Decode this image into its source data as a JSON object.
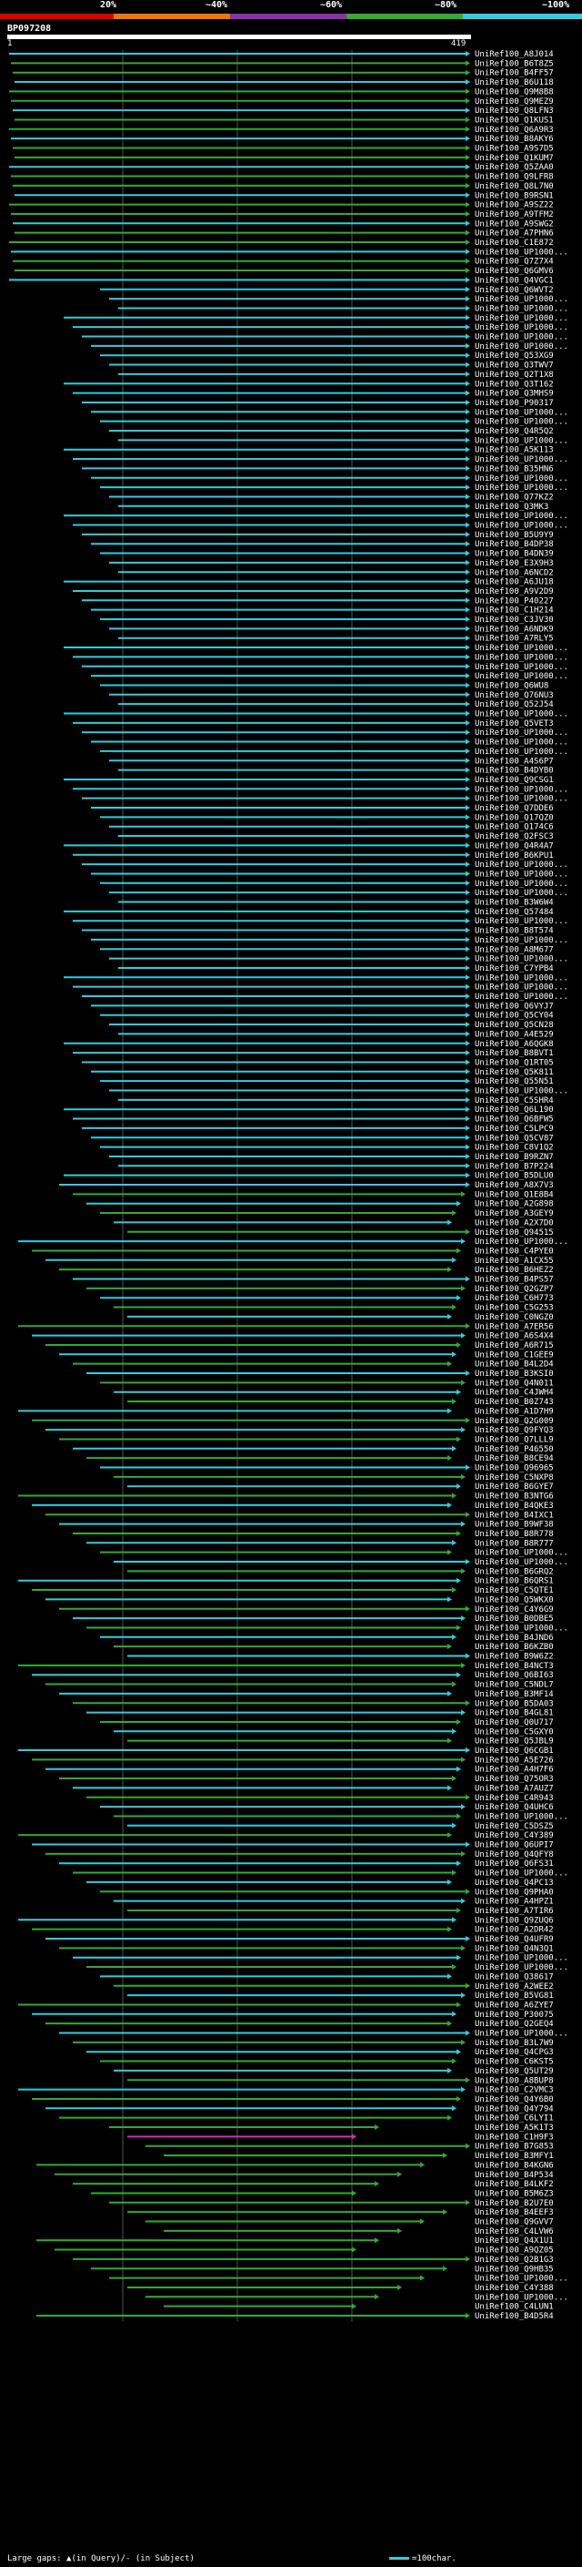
{
  "legend": {
    "segments": [
      {
        "color": "#dd0000"
      },
      {
        "color": "#ee7700"
      },
      {
        "color": "#8833aa"
      },
      {
        "color": "#33aa33"
      },
      {
        "color": "#33ccdd"
      }
    ],
    "labels": [
      "20%",
      "~40%",
      "~60%",
      "~80%",
      "~100%"
    ]
  },
  "query": {
    "id": "BP097208",
    "start": "1",
    "end": "419"
  },
  "colors": {
    "cyan": "#33ccdd",
    "green": "#33aa33",
    "magenta": "#cc33aa",
    "grid": "#555555"
  },
  "hits": {
    "labels": [
      "UniRef100_A8J014",
      "UniRef100_B6T8Z5",
      "UniRef100_B4FF57",
      "UniRef100_B6U118",
      "UniRef100_Q9M8B8",
      "UniRef100_Q9MEZ9",
      "UniRef100_Q8LFN3",
      "UniRef100_Q1KUS1",
      "UniRef100_Q6A9R3",
      "UniRef100_B8AKY6",
      "UniRef100_A9S7D5",
      "UniRef100_Q1KUM7",
      "UniRef100_Q5ZAA0",
      "UniRef100_Q9LFR8",
      "UniRef100_Q8L7N0",
      "UniRef100_B9RSN1",
      "UniRef100_A9SZ22",
      "UniRef100_A9TFM2",
      "UniRef100_A9SWG2",
      "UniRef100_A7PHN6",
      "UniRef100_C1E872",
      "UniRef100_UP1000...",
      "UniRef100_Q7Z7X4",
      "UniRef100_Q6GMV6",
      "UniRef100_Q4VGC1",
      "UniRef100_Q6WVT2",
      "UniRef100_UP1000...",
      "UniRef100_UP1000...",
      "UniRef100_UP1000...",
      "UniRef100_UP1000...",
      "UniRef100_UP1000...",
      "UniRef100_UP1000...",
      "UniRef100_Q53XG9",
      "UniRef100_Q3TWV7",
      "UniRef100_Q2T1X8",
      "UniRef100_Q3T162",
      "UniRef100_Q3MHS9",
      "UniRef100_P90317",
      "UniRef100_UP1000...",
      "UniRef100_UP1000...",
      "UniRef100_Q4R5Q2",
      "UniRef100_UP1000...",
      "UniRef100_A5K113",
      "UniRef100_UP1000...",
      "UniRef100_B35HN6",
      "UniRef100_UP1000...",
      "UniRef100_UP1000...",
      "UniRef100_Q77KZ2",
      "UniRef100_Q3MK3",
      "UniRef100_UP1000...",
      "UniRef100_UP1000...",
      "UniRef100_B5U9Y9",
      "UniRef100_B4DP38",
      "UniRef100_B4DN39",
      "UniRef100_E3X9H3",
      "UniRef100_A6NCD2",
      "UniRef100_A6JU18",
      "UniRef100_A9V2D9",
      "UniRef100_P40227",
      "UniRef100_C1H214",
      "UniRef100_C3JV30",
      "UniRef100_A6NDK9",
      "UniRef100_A7RLY5",
      "UniRef100_UP1000...",
      "UniRef100_UP1000...",
      "UniRef100_UP1000...",
      "UniRef100_UP1000...",
      "UniRef100_Q6WU8",
      "UniRef100_Q76NU3",
      "UniRef100_Q52J54",
      "UniRef100_UP1000...",
      "UniRef100_Q5VET3",
      "UniRef100_UP1000...",
      "UniRef100_UP1000...",
      "UniRef100_UP1000...",
      "UniRef100_A4S6P7",
      "UniRef100_B4DYB0",
      "UniRef100_Q9CSG1",
      "UniRef100_UP1000...",
      "UniRef100_UP1000...",
      "UniRef100_Q7DDE6",
      "UniRef100_Q17QZ0",
      "UniRef100_Q174C6",
      "UniRef100_Q2FSC3",
      "UniRef100_Q4R4A7",
      "UniRef100_B6KPU1",
      "UniRef100_UP1000...",
      "UniRef100_UP1000...",
      "UniRef100_UP1000...",
      "UniRef100_UP1000...",
      "UniRef100_B3W6W4",
      "UniRef100_Q57484",
      "UniRef100_UP1000...",
      "UniRef100_B8T574",
      "UniRef100_UP1000...",
      "UniRef100_A8M677",
      "UniRef100_UP1000...",
      "UniRef100_C7YPB4",
      "UniRef100_UP1000...",
      "UniRef100_UP1000...",
      "UniRef100_UP1000...",
      "UniRef100_Q6VYJ7",
      "UniRef100_Q5CY04",
      "UniRef100_Q5CN28",
      "UniRef100_A4E529",
      "UniRef100_A6QGK8",
      "UniRef100_B8BVT1",
      "UniRef100_Q1RT05",
      "UniRef100_Q5K811",
      "UniRef100_Q55N51",
      "UniRef100_UP1000...",
      "UniRef100_C5SHR4",
      "UniRef100_Q6L190",
      "UniRef100_Q6BFW5",
      "UniRef100_C5LPC9",
      "UniRef100_Q5CV87",
      "UniRef100_C8V1Q2",
      "UniRef100_B9RZN7",
      "UniRef100_B7P224",
      "UniRef100_B5DLU0",
      "UniRef100_A8X7V3",
      "UniRef100_Q1E8B4",
      "UniRef100_A2G898",
      "UniRef100_A3GEY9",
      "UniRef100_A2X7D0",
      "UniRef100_Q94515",
      "UniRef100_UP1000...",
      "UniRef100_C4PYE0",
      "UniRef100_A1CX55",
      "UniRef100_B6HEZ2",
      "UniRef100_B4PS57",
      "UniRef100_Q2GZP7",
      "UniRef100_C6H773",
      "UniRef100_C5G253",
      "UniRef100_C0NGZ0",
      "UniRef100_A7ER56",
      "UniRef100_A6S4X4",
      "UniRef100_A6R715",
      "UniRef100_C1GEE9",
      "UniRef100_B4L2D4",
      "UniRef100_B3KSI0",
      "UniRef100_Q4N011",
      "UniRef100_C4JWH4",
      "UniRef100_B0Z743",
      "UniRef100_A1D7H9",
      "UniRef100_Q2G009",
      "UniRef100_Q9FYQ3",
      "UniRef100_Q7LLL9",
      "UniRef100_P46550",
      "UniRef100_B8CE94",
      "UniRef100_Q96965",
      "UniRef100_C5NXP8",
      "UniRef100_B6GYE7",
      "UniRef100_B3NTG6",
      "UniRef100_B4QKE3",
      "UniRef100_B4IXC1",
      "UniRef100_B9WF38",
      "UniRef100_B8R778",
      "UniRef100_B8R777",
      "UniRef100_UP1000...",
      "UniRef100_UP1000...",
      "UniRef100_B6GRQ2",
      "UniRef100_B6QRS1",
      "UniRef100_C5QTE1",
      "UniRef100_Q5WKX0",
      "UniRef100_C4Y6G9",
      "UniRef100_B0DBE5",
      "UniRef100_UP1000...",
      "UniRef100_B4JND6",
      "UniRef100_B6KZB0",
      "UniRef100_B9W6Z2",
      "UniRef100_B4NCT3",
      "UniRef100_Q6BI63",
      "UniRef100_C5NDL7",
      "UniRef100_B3MF14",
      "UniRef100_B5DA03",
      "UniRef100_B4GL81",
      "UniRef100_Q0U717",
      "UniRef100_C5GXY0",
      "UniRef100_Q5JBL9",
      "UniRef100_Q6CGB1",
      "UniRef100_A5E726",
      "UniRef100_A4H7F6",
      "UniRef100_Q75OR3",
      "UniRef100_A7AUZ7",
      "UniRef100_C4R943",
      "UniRef100_Q4UHC6",
      "UniRef100_UP1000...",
      "UniRef100_C5DSZ5",
      "UniRef100_C4Y389",
      "UniRef100_Q6UPI7",
      "UniRef100_Q4QFY8",
      "UniRef100_Q6FS31",
      "UniRef100_UP1000...",
      "UniRef100_Q4PC13",
      "UniRef100_Q9PHA0",
      "UniRef100_A4HPZ1",
      "UniRef100_A7TIR6",
      "UniRef100_Q9ZUQ6",
      "UniRef100_A2DR42",
      "UniRef100_Q4UFR9",
      "UniRef100_Q4N3Q1",
      "UniRef100_UP1000...",
      "UniRef100_UP1000...",
      "UniRef100_Q38617",
      "UniRef100_A2WEE2",
      "UniRef100_B5VG81",
      "UniRef100_A6ZYE7",
      "UniRef100_P30075",
      "UniRef100_Q2GEQ4",
      "UniRef100_UP1000...",
      "UniRef100_B3L7W9",
      "UniRef100_Q4CPG3",
      "UniRef100_C6KST5",
      "UniRef100_Q5UT29",
      "UniRef100_A8BUP8",
      "UniRef100_C2VMC3",
      "UniRef100_Q4Y6B0",
      "UniRef100_Q4Y794",
      "UniRef100_C6LYI1",
      "UniRef100_A5K1T3",
      "UniRef100_C1H9F3",
      "UniRef100_B7G853",
      "UniRef100_B3MFY1",
      "UniRef100_B4KGN6",
      "UniRef100_B4P534",
      "UniRef100_B4LKF2",
      "UniRef100_B5M6Z3",
      "UniRef100_B2U7E0",
      "UniRef100_B4EEF3",
      "UniRef100_Q9GVV7",
      "UniRef100_C4LVW6",
      "UniRef100_Q4X1U1",
      "UniRef100_A9QZ05",
      "UniRef100_Q2B1G3",
      "UniRef100_Q9HB35",
      "UniRef100_UP1000...",
      "UniRef100_C4Y388",
      "UniRef100_UP1000...",
      "UniRef100_C4LUN1",
      "UniRef100_B4D5R4"
    ]
  },
  "footer": {
    "left": "Large gaps: ▲(in Query)/- (in Subject)",
    "right": "=100char."
  }
}
